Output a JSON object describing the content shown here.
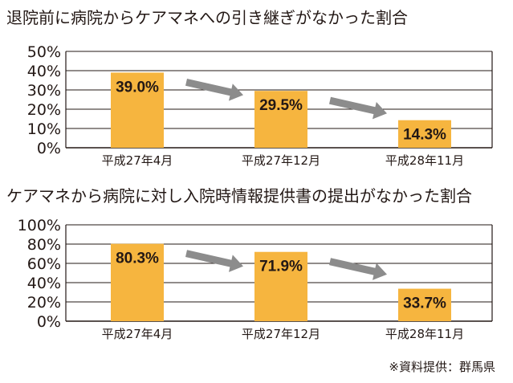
{
  "colors": {
    "bar": "#F6B53F",
    "arrow": "#8C8C8C",
    "axis": "#231815"
  },
  "chart_data": [
    {
      "type": "bar",
      "title": "退院前に病院からケアマネへの引き継ぎがなかった割合",
      "categories": [
        "平成27年4月",
        "平成27年12月",
        "平成28年11月"
      ],
      "values": [
        39.0,
        29.5,
        14.3
      ],
      "value_labels": [
        "39.0%",
        "29.5%",
        "14.3%"
      ],
      "yticks": [
        "0%",
        "10%",
        "20%",
        "30%",
        "40%",
        "50%"
      ],
      "ylim": [
        0,
        50
      ],
      "grid": true,
      "arrows_between_bars": true
    },
    {
      "type": "bar",
      "title": "ケアマネから病院に対し入院時情報提供書の提出がなかった割合",
      "categories": [
        "平成27年4月",
        "平成27年12月",
        "平成28年11月"
      ],
      "values": [
        80.3,
        71.9,
        33.7
      ],
      "value_labels": [
        "80.3%",
        "71.9%",
        "33.7%"
      ],
      "yticks": [
        "0%",
        "20%",
        "40%",
        "60%",
        "80%",
        "100%"
      ],
      "ylim": [
        0,
        100
      ],
      "grid": true,
      "arrows_between_bars": true
    }
  ],
  "source": "※資料提供：群馬県"
}
